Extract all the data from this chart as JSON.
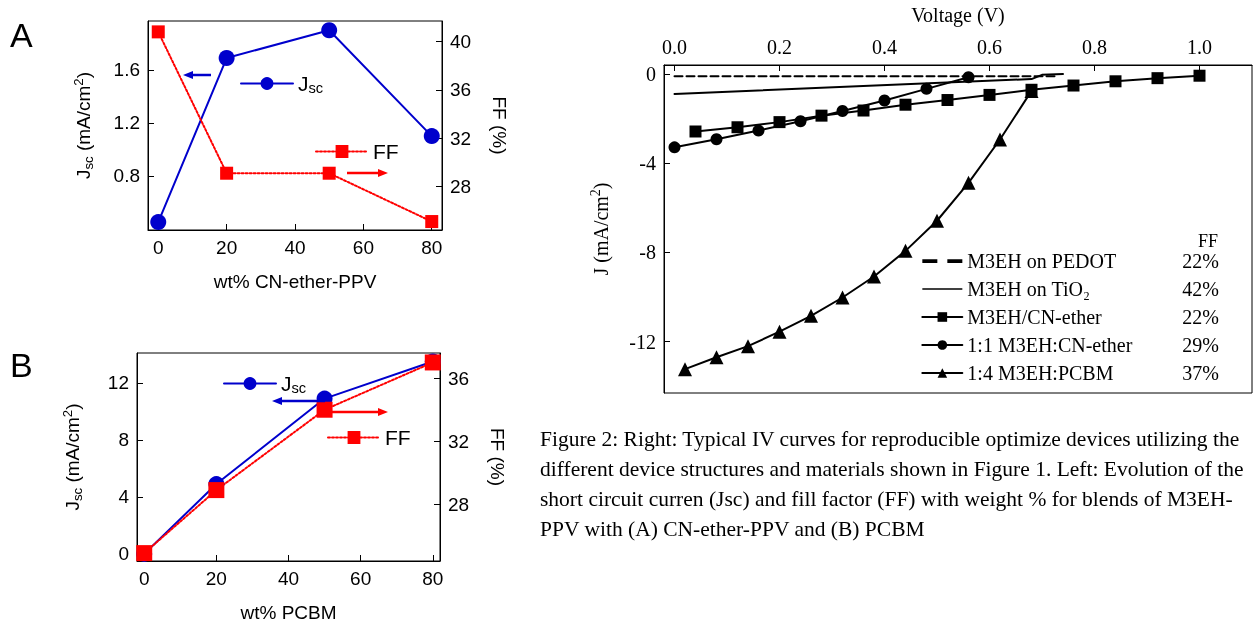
{
  "chart_data": [
    {
      "type": "line",
      "title": "A",
      "xlabel": "wt% CN-ether-PPV",
      "ylabel": "J$_{sc}$ (mA/cm$^{2}$)",
      "y2label": "FF (%)",
      "x": [
        0,
        20,
        50,
        80
      ],
      "xlim": [
        -3,
        83
      ],
      "xticks": [
        0,
        20,
        40,
        60,
        80
      ],
      "ylim": [
        0.39,
        1.97
      ],
      "yticks": [
        0.8,
        1.2,
        1.6
      ],
      "y2lim": [
        24.4,
        41.7
      ],
      "y2ticks": [
        28,
        32,
        36,
        40
      ],
      "legend": "top",
      "series": [
        {
          "name": "J$_{sc}$",
          "color": "#0000cc",
          "values": [
            0.45,
            1.69,
            1.9,
            1.1
          ],
          "marker": "circle",
          "line_style": "solid"
        },
        {
          "name": "FF",
          "color": "#ff0000",
          "values": [
            40.8,
            29.1,
            29.1,
            25.1
          ],
          "marker": "square",
          "line_style": "dotted",
          "axis": "y2"
        }
      ]
    },
    {
      "type": "line",
      "title": "B",
      "xlabel": "wt% PCBM",
      "ylabel": "J$_{sc}$ (mA/cm$^{2}$)",
      "y2label": "FF (%)",
      "x": [
        0,
        20,
        50,
        80
      ],
      "xlim": [
        -2,
        82
      ],
      "xticks": [
        0,
        20,
        40,
        60,
        80
      ],
      "ylim": [
        -0.5,
        14.1
      ],
      "yticks": [
        0,
        4,
        8,
        12
      ],
      "y2lim": [
        24.4,
        37.6
      ],
      "y2ticks": [
        28,
        32,
        36
      ],
      "legend": "top",
      "series": [
        {
          "name": "J$_{sc}$",
          "color": "#0000cc",
          "values": [
            0,
            4.9,
            10.9,
            13.5
          ],
          "marker": "circle",
          "line_style": "solid"
        },
        {
          "name": "FF",
          "color": "#ff0000",
          "values": [
            24.9,
            28.9,
            34.0,
            37.0
          ],
          "marker": "square",
          "line_style": "dotted",
          "axis": "y2"
        }
      ]
    },
    {
      "type": "line",
      "xlabel": "Voltage (V)",
      "ylabel": "J (mA/cm$^{2}$)",
      "xlim": [
        -0.02,
        1.1
      ],
      "xticks": [
        {
          "value": 0,
          "label": "0.0"
        },
        {
          "value": 0.2,
          "label": "0.2"
        },
        {
          "value": 0.4,
          "label": "0.4"
        },
        {
          "value": 0.6,
          "label": "0.6"
        },
        {
          "value": 0.8,
          "label": "0.8"
        },
        {
          "value": 1,
          "label": "1.0"
        }
      ],
      "ylim": [
        -14.3,
        0.4
      ],
      "yticks": [
        0,
        -4,
        -8,
        -12
      ],
      "legend": "bottom right",
      "legend_title": "FF",
      "annotations": [
        "22%",
        "42%",
        "22%",
        "29%",
        "37%",
        "Figure 2: Right: Typical IV curves for reproducible optimize devices utilizing the different device structures and materials shown in Figure 1.  Left: Evolution of the short circuit curren (Jsc) and fill factor (FF) with weight % for blends of M3EH-PPV with (A) CN-ether-PPV and (B) PCBM"
      ],
      "series": [
        {
          "name": "M3EH on PEDOT",
          "color": "#000000",
          "marker": "none",
          "line_style": "dashed",
          "x": [
            0,
            0.73
          ],
          "values": [
            -0.1,
            -0.1
          ]
        },
        {
          "name": "M3EH on TiO₂",
          "color": "#000000",
          "marker": "none",
          "line_style": "solid",
          "x": [
            0,
            0.68,
            0.7,
            0.74
          ],
          "values": [
            -0.9,
            -0.23,
            -0.04,
            0
          ]
        },
        {
          "name": "M3EH/CN-ether",
          "color": "#000000",
          "marker": "square",
          "line_style": "solid",
          "x": [
            0.04,
            0.12,
            0.2,
            0.28,
            0.36,
            0.44,
            0.52,
            0.6,
            0.68,
            0.76,
            0.84,
            0.92,
            1.0
          ],
          "values": [
            -2.58,
            -2.39,
            -2.16,
            -1.87,
            -1.64,
            -1.38,
            -1.17,
            -0.94,
            -0.71,
            -0.52,
            -0.33,
            -0.19,
            -0.08
          ]
        },
        {
          "name": "1:1 M3EH:CN-ether",
          "color": "#000000",
          "marker": "circle",
          "line_style": "solid",
          "x": [
            0,
            0.08,
            0.16,
            0.24,
            0.32,
            0.4,
            0.48,
            0.56
          ],
          "values": [
            -3.29,
            -2.93,
            -2.54,
            -2.12,
            -1.66,
            -1.19,
            -0.67,
            -0.15
          ]
        },
        {
          "name": "1:4 M3EH:PCBM",
          "color": "#000000",
          "marker": "triangle",
          "line_style": "solid",
          "x": [
            0.02,
            0.08,
            0.14,
            0.2,
            0.26,
            0.32,
            0.38,
            0.44,
            0.5,
            0.56,
            0.62,
            0.68
          ],
          "values": [
            -13.23,
            -12.7,
            -12.2,
            -11.55,
            -10.84,
            -10.02,
            -9.08,
            -7.93,
            -6.58,
            -4.88,
            -2.94,
            -0.76
          ]
        }
      ]
    }
  ]
}
